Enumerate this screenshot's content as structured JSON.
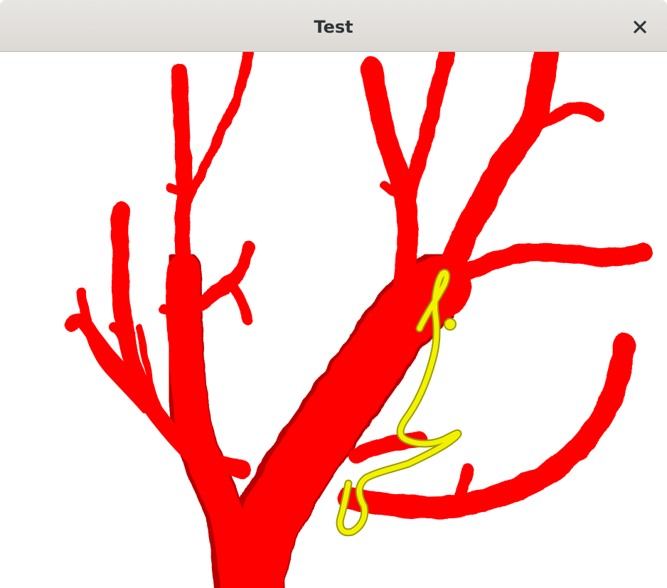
{
  "window": {
    "title": "Test",
    "close_icon": "close-icon"
  },
  "scene": {
    "background_color": "#ffffff",
    "vessel_tree_color": "#ff0000",
    "vessel_shade_color": "#b80000",
    "catheter_color": "#f2f200",
    "catheter_outline_color": "#9a9a00"
  }
}
